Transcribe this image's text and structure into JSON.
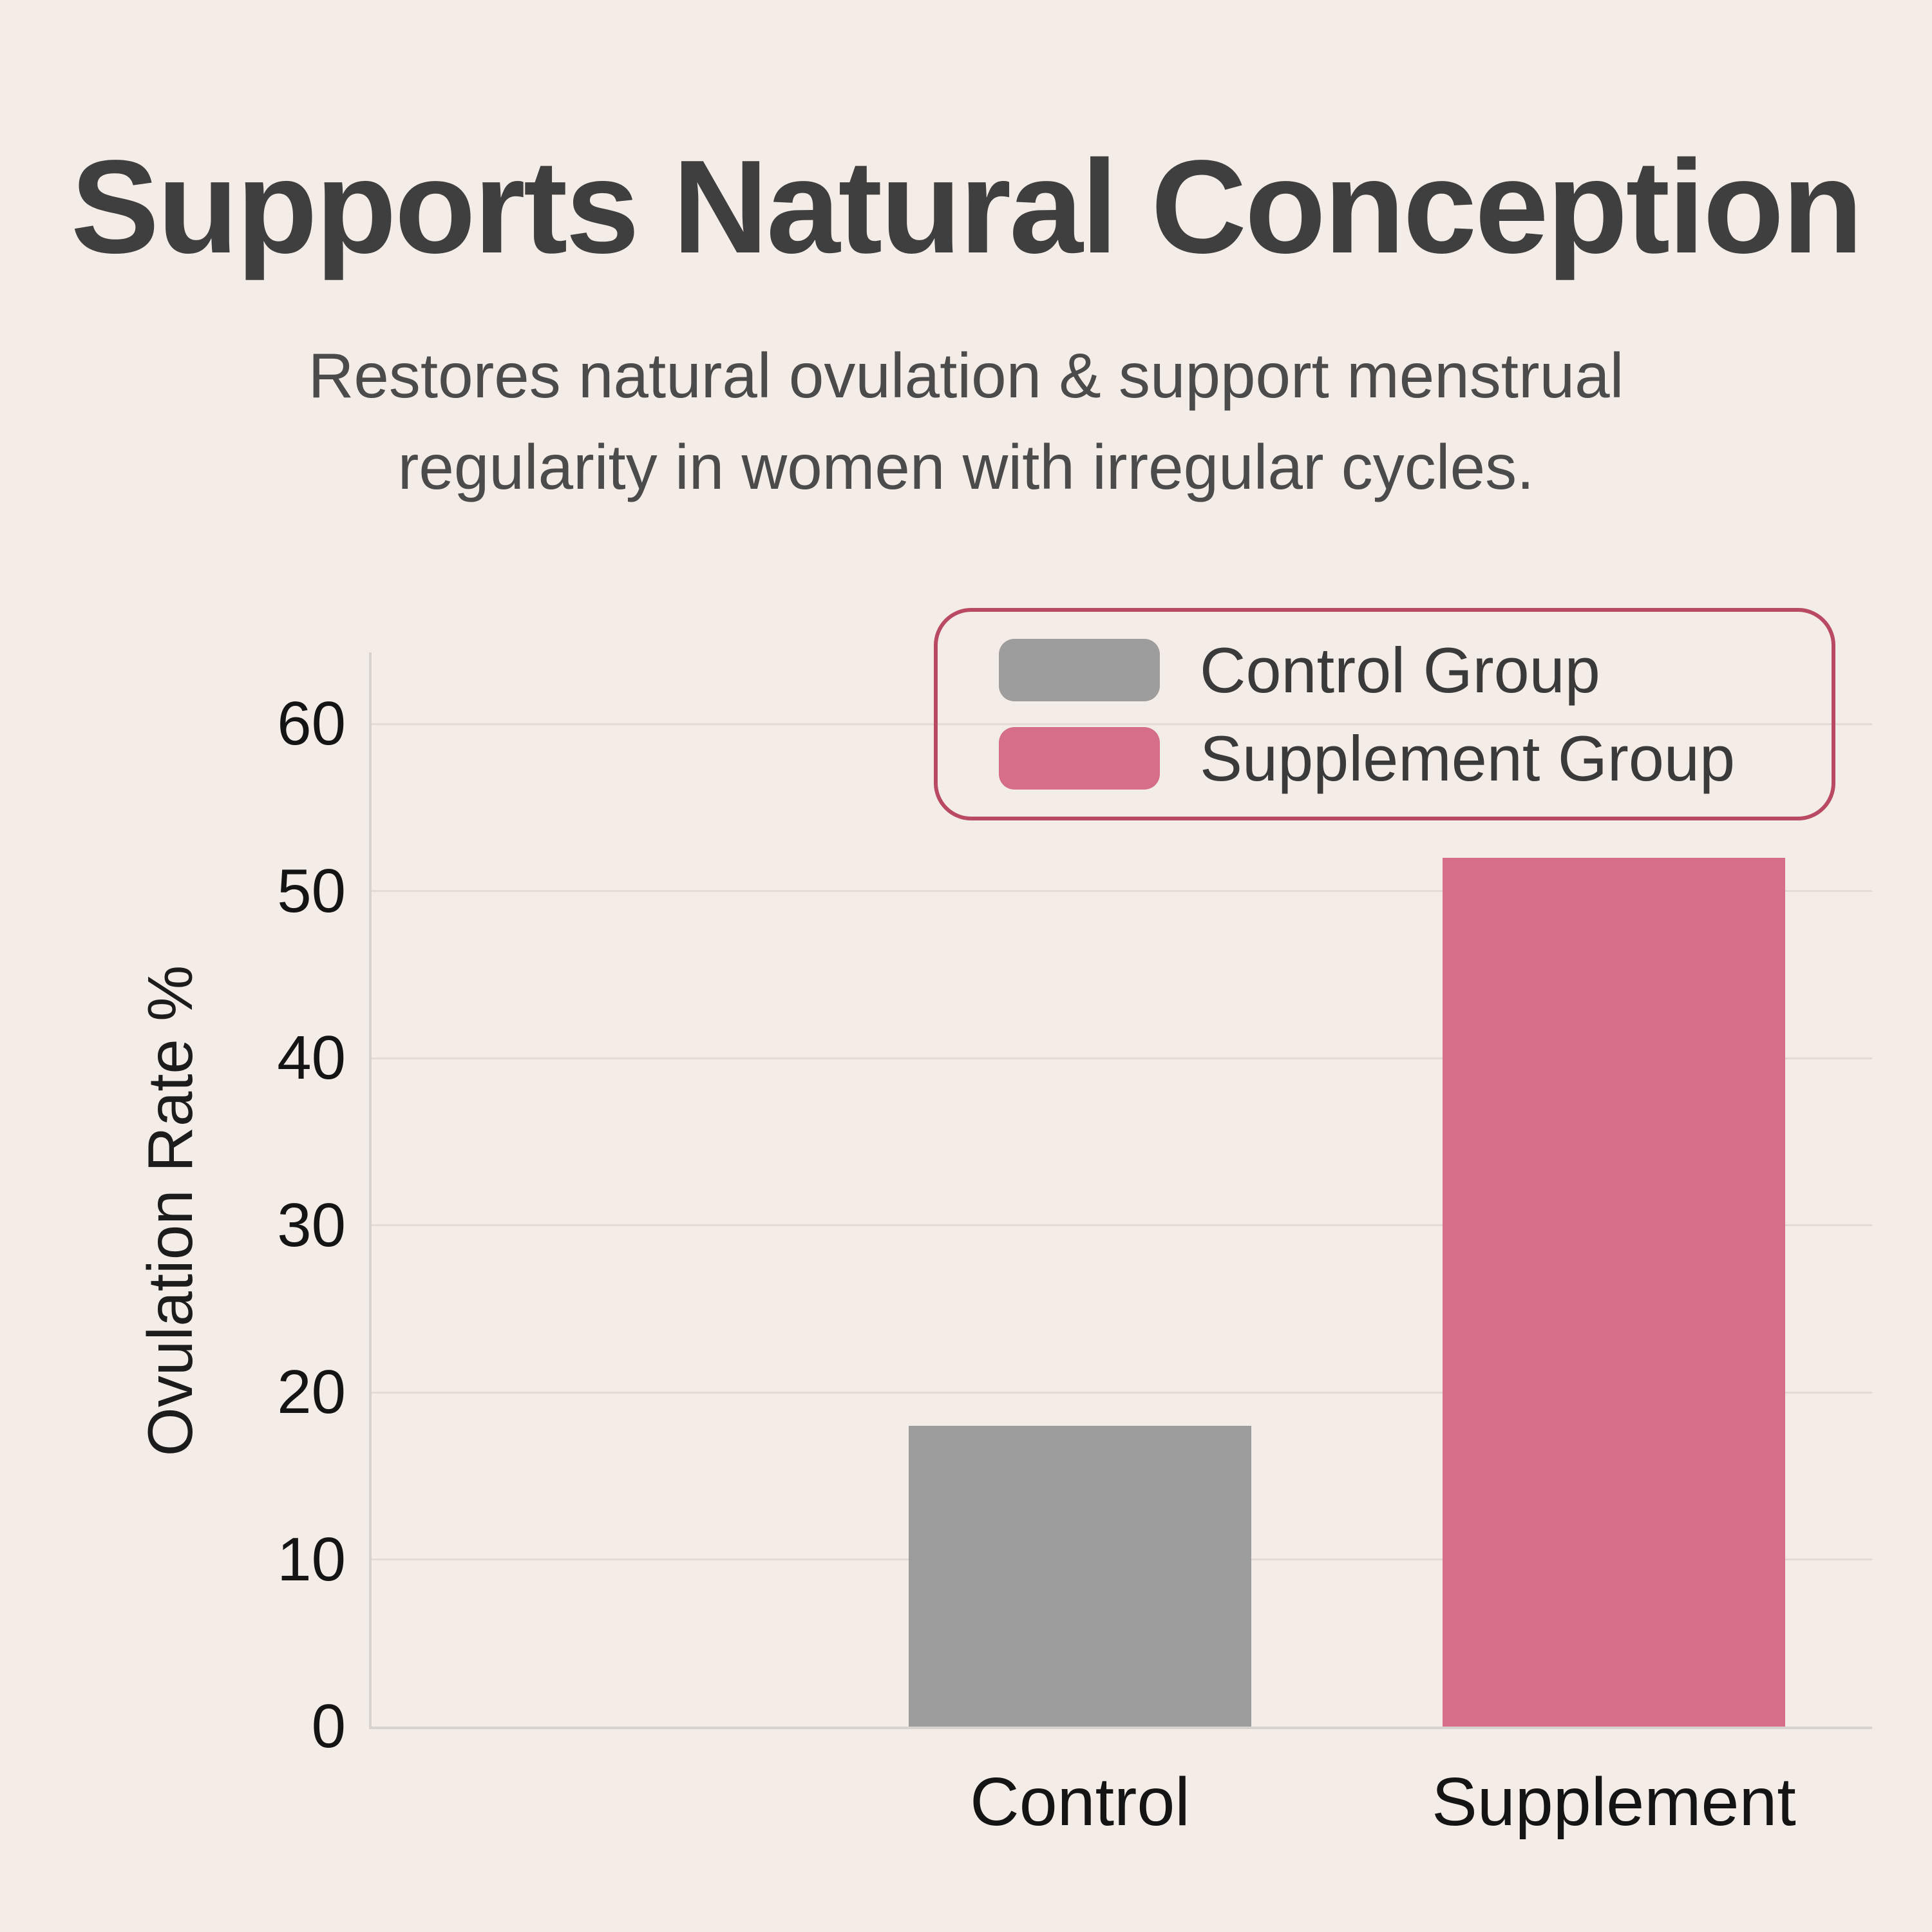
{
  "header": {
    "title": "Supports Natural Conception",
    "subtitle_line1": "Restores natural ovulation & support menstrual",
    "subtitle_line2": "regularity in women with irregular cycles."
  },
  "chart_data": {
    "type": "bar",
    "title": "Supports Natural Conception",
    "xlabel": "",
    "ylabel": "Ovulation Rate %",
    "categories": [
      "Control",
      "Supplement"
    ],
    "values": [
      18,
      52
    ],
    "bar_colors": [
      "#9d9d9d",
      "#d56e88"
    ],
    "yticks": [
      0,
      10,
      20,
      30,
      40,
      50,
      60
    ],
    "ylim": [
      0,
      60
    ],
    "grid": "horizontal",
    "legend": {
      "position": "upper-right",
      "border_color": "#b94a64",
      "entries": [
        {
          "label": "Control Group",
          "color": "#9d9d9d"
        },
        {
          "label": "Supplement Group",
          "color": "#d56e88"
        }
      ]
    }
  },
  "theme": {
    "background": "#f4ece7",
    "title_color": "#3f3f3f",
    "subtitle_color": "#4b4b4b",
    "tick_color": "#141414",
    "gridline_color": "#e4dbd6",
    "spine_color": "#d9d3cf",
    "legend_text_color": "#3a3a3a"
  }
}
